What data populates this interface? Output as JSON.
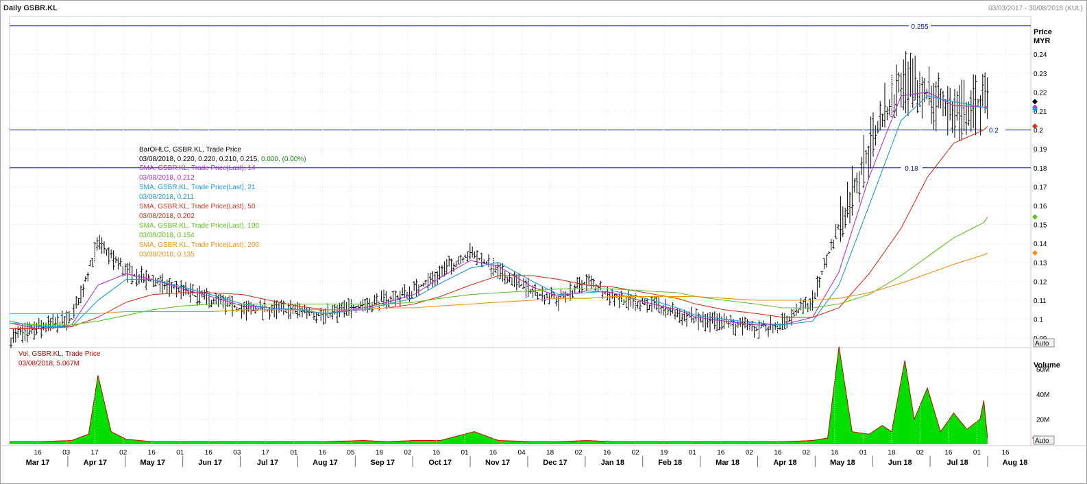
{
  "header": {
    "title": "Daily GSBR.KL",
    "date_range": "03/03/2017 - 30/08/2018 (KUL)"
  },
  "legend": {
    "ohlc_title": "BarOHLC, GSBR.KL, Trade Price",
    "ohlc_values": "03/08/2018, 0.220, 0.220, 0.210, 0.215,",
    "ohlc_change": "0.000, (0.00%)",
    "sma14_title": "SMA, GSBR.KL, Trade Price(Last),  14",
    "sma14_value": "03/08/2018, 0.212",
    "sma21_title": "SMA, GSBR.KL, Trade Price(Last),  21",
    "sma21_value": "03/08/2018, 0.211",
    "sma50_title": "SMA, GSBR.KL, Trade Price(Last),  50",
    "sma50_value": "03/08/2018, 0.202",
    "sma100_title": "SMA, GSBR.KL, Trade Price(Last),  100",
    "sma100_value": "03/08/2018, 0.154",
    "sma200_title": "SMA, GSBR.KL, Trade Price(Last),  200",
    "sma200_value": "03/08/2018, 0.135",
    "vol_title": "Vol, GSBR.KL, Trade Price",
    "vol_value": "03/08/2018, 5.067M"
  },
  "axis": {
    "price_label": "Price",
    "price_unit": "MYR",
    "volume_label": "Volume",
    "auto_label": "Auto"
  },
  "colors": {
    "sma14": "#b030d0",
    "sma21": "#1a9ad8",
    "sma50": "#d83020",
    "sma100": "#60c020",
    "sma200": "#f09010",
    "volume_fill": "#00e000",
    "volume_line": "#d00000",
    "hline": "#0a1a8a",
    "grid": "#e4e4e4",
    "bars": "#000000"
  },
  "chart_data": [
    {
      "type": "line",
      "title": "Daily GSBR.KL",
      "ylabel": "Price MYR",
      "ylim": [
        0.085,
        0.26
      ],
      "yticks": [
        "0.09",
        "0.1",
        "0.11",
        "0.12",
        "0.13",
        "0.14",
        "0.15",
        "0.16",
        "0.17",
        "0.18",
        "0.19",
        "0.2",
        "0.21",
        "0.22",
        "0.23",
        "0.24"
      ],
      "grid": true,
      "hlines": [
        {
          "value": 0.255,
          "label": "0.255"
        },
        {
          "value": 0.2,
          "label": "0.2"
        },
        {
          "value": 0.18,
          "label": "0.18"
        }
      ],
      "x_dates": [
        "2017-03-01",
        "2017-03-16",
        "2017-04-03",
        "2017-04-17",
        "2017-05-02",
        "2017-05-16",
        "2017-06-01",
        "2017-06-16",
        "2017-07-03",
        "2017-07-17",
        "2017-08-01",
        "2017-08-16",
        "2017-09-05",
        "2017-09-18",
        "2017-10-02",
        "2017-10-16",
        "2017-11-01",
        "2017-11-16",
        "2017-12-04",
        "2017-12-18",
        "2018-01-02",
        "2018-01-16",
        "2018-02-02",
        "2018-02-19",
        "2018-03-01",
        "2018-03-16",
        "2018-04-02",
        "2018-04-16",
        "2018-05-02",
        "2018-05-16",
        "2018-06-01",
        "2018-06-18",
        "2018-07-02",
        "2018-07-16",
        "2018-08-01",
        "2018-08-03"
      ],
      "close": [
        0.09,
        0.095,
        0.1,
        0.14,
        0.125,
        0.12,
        0.115,
        0.11,
        0.105,
        0.105,
        0.105,
        0.102,
        0.108,
        0.11,
        0.115,
        0.125,
        0.135,
        0.125,
        0.115,
        0.11,
        0.12,
        0.112,
        0.108,
        0.103,
        0.1,
        0.098,
        0.095,
        0.098,
        0.11,
        0.15,
        0.19,
        0.225,
        0.22,
        0.21,
        0.215,
        0.215
      ],
      "series": [
        {
          "name": "SMA 14",
          "values": [
            0.098,
            0.095,
            0.097,
            0.118,
            0.124,
            0.121,
            0.116,
            0.112,
            0.107,
            0.106,
            0.105,
            0.103,
            0.106,
            0.109,
            0.113,
            0.122,
            0.131,
            0.128,
            0.117,
            0.112,
            0.115,
            0.114,
            0.109,
            0.105,
            0.101,
            0.099,
            0.097,
            0.097,
            0.101,
            0.125,
            0.175,
            0.218,
            0.22,
            0.213,
            0.212,
            0.212
          ]
        },
        {
          "name": "SMA 21",
          "values": [
            0.099,
            0.096,
            0.096,
            0.11,
            0.121,
            0.121,
            0.117,
            0.113,
            0.108,
            0.106,
            0.105,
            0.103,
            0.105,
            0.108,
            0.111,
            0.119,
            0.127,
            0.13,
            0.12,
            0.113,
            0.114,
            0.115,
            0.111,
            0.106,
            0.102,
            0.1,
            0.098,
            0.097,
            0.099,
            0.118,
            0.16,
            0.205,
            0.218,
            0.215,
            0.212,
            0.211
          ]
        },
        {
          "name": "SMA 50",
          "values": [
            0.095,
            0.095,
            0.096,
            0.101,
            0.109,
            0.113,
            0.114,
            0.114,
            0.113,
            0.11,
            0.107,
            0.105,
            0.105,
            0.106,
            0.108,
            0.112,
            0.118,
            0.123,
            0.123,
            0.121,
            0.118,
            0.117,
            0.114,
            0.111,
            0.108,
            0.105,
            0.103,
            0.101,
            0.101,
            0.106,
            0.124,
            0.148,
            0.175,
            0.193,
            0.2,
            0.202
          ]
        },
        {
          "name": "SMA 100",
          "values": [
            0.098,
            0.097,
            0.097,
            0.099,
            0.102,
            0.105,
            0.107,
            0.108,
            0.108,
            0.108,
            0.108,
            0.108,
            0.108,
            0.108,
            0.109,
            0.111,
            0.113,
            0.114,
            0.115,
            0.116,
            0.116,
            0.116,
            0.115,
            0.114,
            0.112,
            0.11,
            0.108,
            0.106,
            0.106,
            0.108,
            0.113,
            0.123,
            0.133,
            0.143,
            0.151,
            0.154
          ]
        },
        {
          "name": "SMA 200",
          "values": [
            0.103,
            0.103,
            0.103,
            0.103,
            0.104,
            0.104,
            0.104,
            0.104,
            0.105,
            0.105,
            0.105,
            0.105,
            0.105,
            0.106,
            0.106,
            0.107,
            0.108,
            0.109,
            0.11,
            0.111,
            0.111,
            0.112,
            0.112,
            0.112,
            0.112,
            0.111,
            0.11,
            0.11,
            0.11,
            0.111,
            0.114,
            0.119,
            0.124,
            0.129,
            0.134,
            0.135
          ]
        }
      ],
      "last_markers": [
        {
          "value": 0.215,
          "color": "#000000"
        },
        {
          "value": 0.212,
          "color": "#b030d0"
        },
        {
          "value": 0.211,
          "color": "#1a9ad8"
        },
        {
          "value": 0.202,
          "color": "#d83020"
        },
        {
          "value": 0.154,
          "color": "#60c020"
        },
        {
          "value": 0.135,
          "color": "#f09010"
        }
      ]
    },
    {
      "type": "area",
      "title": "Vol, GSBR.KL, Trade Price",
      "ylabel": "Volume",
      "ylim": [
        0,
        75
      ],
      "yticks": [
        "20M",
        "40M",
        "60M"
      ],
      "grid": true,
      "x_dates": [
        "2017-03-01",
        "2017-03-16",
        "2017-04-03",
        "2017-04-12",
        "2017-04-17",
        "2017-04-24",
        "2017-05-02",
        "2017-05-16",
        "2017-06-01",
        "2017-06-16",
        "2017-07-03",
        "2017-07-17",
        "2017-08-01",
        "2017-08-16",
        "2017-09-05",
        "2017-09-18",
        "2017-10-02",
        "2017-10-16",
        "2017-11-03",
        "2017-11-16",
        "2017-12-04",
        "2017-12-18",
        "2018-01-02",
        "2018-01-16",
        "2018-02-02",
        "2018-02-19",
        "2018-03-01",
        "2018-03-16",
        "2018-04-02",
        "2018-04-16",
        "2018-05-02",
        "2018-05-10",
        "2018-05-16",
        "2018-05-23",
        "2018-06-01",
        "2018-06-08",
        "2018-06-13",
        "2018-06-20",
        "2018-06-25",
        "2018-07-02",
        "2018-07-09",
        "2018-07-16",
        "2018-07-23",
        "2018-07-30",
        "2018-08-01",
        "2018-08-03"
      ],
      "values": [
        2,
        2,
        3,
        8,
        55,
        10,
        4,
        2,
        2,
        2,
        2,
        2,
        2,
        2,
        3,
        2,
        3,
        3,
        10,
        3,
        2,
        2,
        3,
        2,
        2,
        2,
        2,
        2,
        2,
        2,
        3,
        5,
        78,
        10,
        8,
        15,
        10,
        67,
        20,
        45,
        10,
        25,
        12,
        20,
        35,
        5
      ]
    }
  ],
  "x_axis": {
    "day_ticks": [
      "16",
      "03",
      "17",
      "02",
      "16",
      "01",
      "16",
      "03",
      "17",
      "01",
      "16",
      "05",
      "18",
      "02",
      "16",
      "01",
      "16",
      "04",
      "18",
      "02",
      "16",
      "02",
      "19",
      "01",
      "16",
      "02",
      "16",
      "02",
      "16",
      "01",
      "18",
      "02",
      "16",
      "01",
      "16"
    ],
    "months": [
      "Mar 17",
      "Apr 17",
      "May 17",
      "Jun 17",
      "Jul 17",
      "Aug 17",
      "Sep 17",
      "Oct 17",
      "Nov 17",
      "Dec 17",
      "Jan 18",
      "Feb 18",
      "Mar 18",
      "Apr 18",
      "May 18",
      "Jun 18",
      "Jul 18",
      "Aug 18"
    ]
  }
}
